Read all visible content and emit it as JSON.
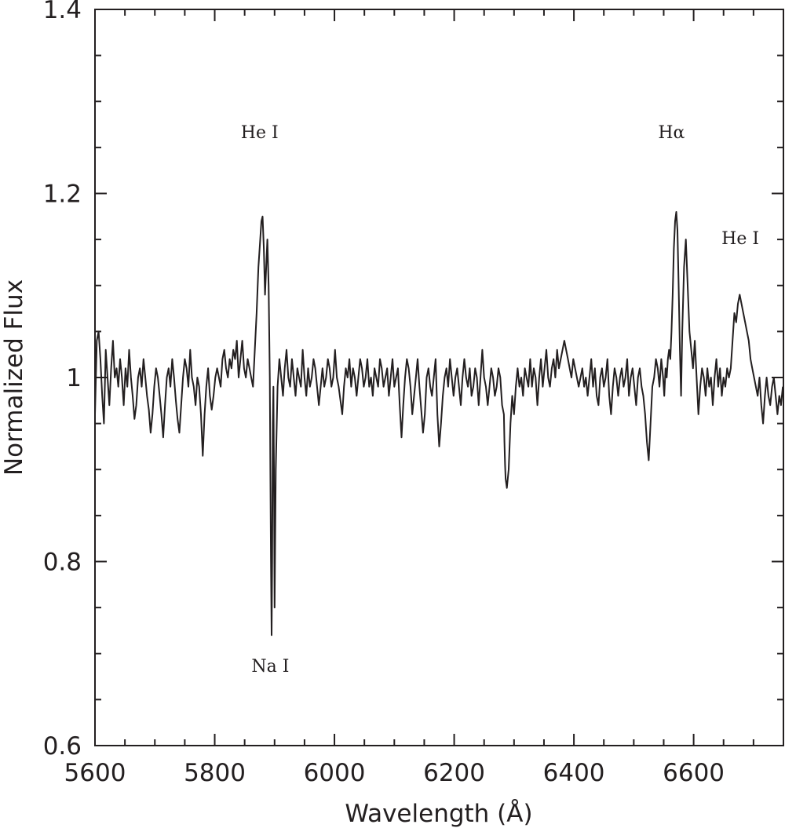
{
  "chart_data": {
    "type": "line",
    "xlabel": "Wavelength (Å)",
    "ylabel": "Normalized Flux",
    "xlim": [
      5600,
      6750
    ],
    "ylim": [
      0.6,
      1.4
    ],
    "x_major_ticks": [
      5600,
      5800,
      6000,
      6200,
      6400,
      6600
    ],
    "x_tick_labels": [
      "5600",
      "5800",
      "6000",
      "6200",
      "6400",
      "6600"
    ],
    "x_minor_step": 50,
    "y_major_ticks": [
      0.6,
      0.8,
      1.0,
      1.2,
      1.4
    ],
    "y_tick_labels": [
      "0.6",
      "0.8",
      "1",
      "1.2",
      "1.4"
    ],
    "y_minor_step": 0.05,
    "grid": false,
    "legend": "none",
    "annotations": [
      {
        "text": "He I",
        "x": 5875,
        "y": 1.26
      },
      {
        "text": "Na I",
        "x": 5893,
        "y": 0.68
      },
      {
        "text": "Hα",
        "x": 6563,
        "y": 1.26
      },
      {
        "text": "He I",
        "x": 6678,
        "y": 1.145
      }
    ],
    "series": [
      {
        "x": [
          5600,
          5603,
          5606,
          5609,
          5612,
          5615,
          5618,
          5621,
          5624,
          5627,
          5630,
          5633,
          5636,
          5639,
          5642,
          5645,
          5648,
          5651,
          5654,
          5657,
          5660,
          5663,
          5666,
          5669,
          5672,
          5675,
          5678,
          5681,
          5684,
          5687,
          5690,
          5693,
          5696,
          5699,
          5702,
          5705,
          5708,
          5711,
          5714,
          5717,
          5720,
          5723,
          5726,
          5729,
          5732,
          5735,
          5738,
          5741,
          5744,
          5747,
          5750,
          5753,
          5756,
          5759,
          5762,
          5765,
          5768,
          5771,
          5774,
          5777,
          5780,
          5783,
          5786,
          5789,
          5792,
          5795,
          5798,
          5801,
          5804,
          5807,
          5810,
          5813,
          5816,
          5819,
          5822,
          5825,
          5828,
          5831,
          5834,
          5837,
          5840,
          5843,
          5846,
          5849,
          5852,
          5855,
          5858,
          5861,
          5864,
          5867,
          5870,
          5873,
          5876,
          5878,
          5880,
          5882,
          5884,
          5886,
          5888,
          5890,
          5892,
          5893,
          5894,
          5895,
          5896,
          5897,
          5898,
          5899,
          5900,
          5902,
          5905,
          5908,
          5911,
          5914,
          5917,
          5920,
          5923,
          5926,
          5929,
          5932,
          5935,
          5938,
          5941,
          5944,
          5947,
          5950,
          5953,
          5956,
          5959,
          5962,
          5965,
          5968,
          5971,
          5974,
          5977,
          5980,
          5983,
          5986,
          5989,
          5992,
          5995,
          5998,
          6001,
          6004,
          6007,
          6010,
          6013,
          6016,
          6019,
          6022,
          6025,
          6028,
          6031,
          6034,
          6037,
          6040,
          6043,
          6046,
          6049,
          6052,
          6055,
          6058,
          6061,
          6064,
          6067,
          6070,
          6073,
          6076,
          6079,
          6082,
          6085,
          6088,
          6091,
          6094,
          6097,
          6100,
          6103,
          6106,
          6109,
          6112,
          6115,
          6118,
          6121,
          6124,
          6127,
          6130,
          6133,
          6136,
          6139,
          6142,
          6145,
          6148,
          6151,
          6154,
          6157,
          6160,
          6163,
          6166,
          6169,
          6172,
          6175,
          6178,
          6181,
          6184,
          6187,
          6190,
          6193,
          6196,
          6199,
          6202,
          6205,
          6208,
          6211,
          6214,
          6217,
          6220,
          6223,
          6226,
          6229,
          6232,
          6235,
          6238,
          6241,
          6244,
          6247,
          6250,
          6253,
          6256,
          6259,
          6262,
          6265,
          6268,
          6271,
          6274,
          6277,
          6280,
          6283,
          6284,
          6285,
          6286,
          6288,
          6291,
          6294,
          6297,
          6300,
          6303,
          6306,
          6309,
          6312,
          6315,
          6318,
          6321,
          6324,
          6327,
          6330,
          6333,
          6336,
          6339,
          6342,
          6345,
          6348,
          6351,
          6354,
          6357,
          6360,
          6363,
          6366,
          6369,
          6372,
          6375,
          6378,
          6381,
          6384,
          6387,
          6390,
          6393,
          6396,
          6399,
          6402,
          6405,
          6408,
          6411,
          6414,
          6417,
          6420,
          6423,
          6426,
          6429,
          6432,
          6435,
          6438,
          6441,
          6444,
          6447,
          6450,
          6453,
          6456,
          6459,
          6462,
          6465,
          6468,
          6471,
          6474,
          6477,
          6480,
          6483,
          6486,
          6489,
          6492,
          6495,
          6498,
          6501,
          6504,
          6507,
          6510,
          6513,
          6516,
          6519,
          6522,
          6525,
          6528,
          6531,
          6534,
          6537,
          6540,
          6543,
          6546,
          6549,
          6551,
          6553,
          6555,
          6557,
          6559,
          6561,
          6563,
          6565,
          6567,
          6569,
          6571,
          6573,
          6575,
          6577,
          6579,
          6581,
          6584,
          6587,
          6590,
          6593,
          6596,
          6599,
          6602,
          6605,
          6608,
          6611,
          6614,
          6617,
          6620,
          6623,
          6626,
          6629,
          6632,
          6635,
          6638,
          6641,
          6644,
          6647,
          6650,
          6653,
          6656,
          6659,
          6662,
          6665,
          6668,
          6671,
          6674,
          6677,
          6680,
          6683,
          6686,
          6689,
          6692,
          6695,
          6698,
          6701,
          6704,
          6707,
          6710,
          6713,
          6716,
          6719,
          6722,
          6725,
          6728,
          6731,
          6734,
          6737,
          6740,
          6743,
          6746,
          6749
        ],
        "y": [
          0.96,
          1.04,
          1.05,
          1.02,
          0.98,
          0.95,
          1.03,
          1.0,
          0.97,
          1.01,
          1.04,
          1.0,
          1.01,
          0.99,
          1.02,
          1.0,
          0.97,
          1.01,
          0.99,
          1.03,
          1.0,
          0.98,
          0.955,
          0.97,
          1.0,
          1.01,
          0.99,
          1.02,
          1.0,
          0.98,
          0.965,
          0.94,
          0.96,
          0.99,
          1.01,
          1.0,
          0.98,
          0.96,
          0.935,
          0.97,
          1.0,
          1.01,
          0.99,
          1.02,
          1.0,
          0.975,
          0.955,
          0.94,
          0.97,
          1.0,
          1.02,
          1.01,
          0.99,
          1.03,
          1.0,
          0.99,
          0.97,
          1.0,
          0.99,
          0.96,
          0.915,
          0.96,
          0.99,
          1.01,
          0.98,
          0.965,
          0.98,
          1.0,
          1.01,
          1.0,
          0.99,
          1.02,
          1.03,
          1.01,
          1.0,
          1.02,
          1.01,
          1.03,
          1.02,
          1.04,
          1.0,
          1.02,
          1.04,
          1.01,
          1.0,
          1.02,
          1.01,
          1.0,
          0.99,
          1.03,
          1.07,
          1.12,
          1.15,
          1.17,
          1.175,
          1.14,
          1.09,
          1.12,
          1.15,
          1.1,
          1.0,
          0.9,
          0.8,
          0.72,
          0.8,
          0.95,
          0.99,
          0.9,
          0.75,
          0.9,
          0.99,
          1.02,
          1.0,
          0.98,
          1.01,
          1.03,
          1.0,
          0.99,
          1.02,
          1.0,
          0.98,
          1.01,
          1.0,
          0.99,
          1.03,
          1.0,
          0.98,
          1.01,
          0.99,
          1.0,
          1.02,
          1.01,
          0.99,
          0.97,
          0.99,
          1.01,
          0.99,
          1.0,
          1.02,
          1.01,
          0.99,
          1.0,
          1.03,
          1.0,
          0.99,
          0.975,
          0.96,
          0.99,
          1.01,
          1.0,
          1.02,
          0.99,
          1.01,
          1.0,
          0.98,
          1.0,
          1.02,
          1.01,
          0.99,
          1.0,
          1.02,
          0.99,
          1.0,
          0.98,
          1.01,
          1.0,
          0.99,
          1.02,
          1.01,
          0.99,
          1.0,
          1.01,
          0.98,
          1.0,
          1.02,
          0.99,
          1.0,
          1.01,
          0.97,
          0.935,
          0.97,
          1.0,
          1.02,
          1.01,
          0.99,
          0.96,
          0.98,
          1.0,
          1.02,
          0.99,
          0.965,
          0.94,
          0.96,
          1.0,
          1.01,
          0.99,
          0.98,
          1.0,
          1.02,
          0.96,
          0.925,
          0.95,
          0.98,
          1.0,
          1.01,
          0.99,
          1.02,
          1.0,
          0.98,
          1.0,
          1.01,
          0.99,
          0.97,
          1.0,
          1.02,
          1.0,
          0.99,
          1.01,
          0.98,
          0.99,
          1.01,
          1.0,
          0.97,
          1.0,
          1.03,
          1.0,
          0.99,
          0.97,
          0.99,
          1.01,
          1.0,
          0.98,
          0.99,
          1.01,
          1.0,
          0.97,
          0.96,
          0.93,
          0.905,
          0.89,
          0.88,
          0.9,
          0.95,
          0.98,
          0.96,
          0.99,
          1.01,
          0.99,
          1.0,
          0.98,
          1.01,
          1.0,
          0.99,
          1.02,
          0.99,
          1.01,
          1.0,
          0.97,
          1.0,
          1.02,
          0.99,
          1.01,
          1.03,
          1.0,
          0.99,
          1.01,
          1.02,
          1.0,
          1.03,
          1.01,
          1.02,
          1.03,
          1.04,
          1.03,
          1.02,
          1.01,
          1.0,
          1.02,
          1.01,
          1.0,
          0.99,
          1.0,
          1.01,
          0.99,
          1.0,
          0.98,
          1.0,
          1.02,
          0.99,
          1.01,
          0.98,
          0.97,
          1.0,
          1.01,
          0.99,
          1.0,
          1.02,
          0.98,
          0.96,
          0.99,
          1.01,
          1.0,
          0.98,
          1.0,
          1.01,
          0.99,
          1.0,
          1.02,
          0.98,
          1.0,
          1.01,
          0.99,
          0.97,
          1.0,
          1.01,
          0.99,
          0.98,
          0.96,
          0.93,
          0.91,
          0.95,
          0.99,
          1.0,
          1.02,
          1.01,
          0.99,
          1.02,
          1.0,
          0.98,
          1.01,
          1.0,
          1.02,
          1.03,
          1.02,
          1.05,
          1.09,
          1.14,
          1.17,
          1.18,
          1.16,
          1.1,
          1.03,
          0.98,
          1.05,
          1.12,
          1.15,
          1.1,
          1.05,
          1.03,
          1.01,
          1.04,
          1.0,
          0.96,
          0.99,
          1.01,
          1.0,
          0.98,
          1.01,
          0.99,
          1.0,
          0.97,
          1.0,
          1.02,
          0.99,
          1.01,
          0.98,
          1.0,
          0.99,
          1.01,
          1.0,
          1.01,
          1.04,
          1.07,
          1.06,
          1.08,
          1.09,
          1.08,
          1.07,
          1.06,
          1.05,
          1.04,
          1.02,
          1.01,
          1.0,
          0.99,
          0.98,
          1.0,
          0.97,
          0.95,
          0.98,
          1.0,
          0.98,
          0.97,
          0.99,
          1.0,
          0.98,
          0.96,
          0.98,
          0.97,
          0.99
        ]
      }
    ]
  }
}
